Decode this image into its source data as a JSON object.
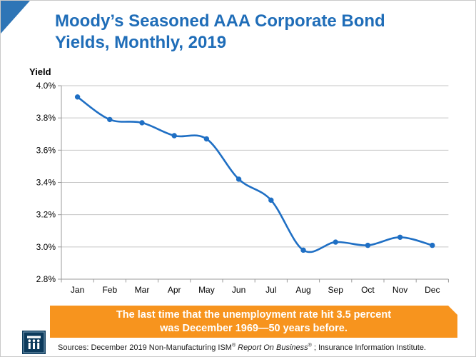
{
  "colors": {
    "title_blue": "#1F6DB8",
    "corner_blue": "#2E75B6",
    "banner_orange": "#F7941E",
    "line_blue": "#1F6FC4",
    "gridline_gray": "#C6C6C6",
    "axis_gray": "#9B9B9B",
    "logo_navy": "#0C3A5C"
  },
  "title": {
    "line1": "Moody’s Seasoned AAA Corporate Bond",
    "line2": "Yields, Monthly, 2019"
  },
  "chart_data": {
    "type": "line",
    "title": "Moody’s Seasoned AAA Corporate Bond Yields, Monthly, 2019",
    "ylabel": "Yield",
    "xlabel": "",
    "categories": [
      "Jan",
      "Feb",
      "Mar",
      "Apr",
      "May",
      "Jun",
      "Jul",
      "Aug",
      "Sep",
      "Oct",
      "Nov",
      "Dec"
    ],
    "series": [
      {
        "name": "AAA Corporate Bond Yield",
        "values": [
          3.93,
          3.79,
          3.77,
          3.69,
          3.67,
          3.42,
          3.29,
          2.98,
          3.03,
          3.01,
          3.06,
          3.01
        ]
      }
    ],
    "ylim": [
      2.8,
      4.0
    ],
    "ytick_step": 0.2,
    "ytick_suffix": "%",
    "grid": true,
    "smooth_line": true,
    "markers": true,
    "legend": "none"
  },
  "banner": {
    "line1": "The last time that the unemployment rate hit 3.5 percent",
    "line2": "was December 1969—50 years before."
  },
  "footer": {
    "sources_prefix": "Sources: December 2019 Non-Manufacturing ISM",
    "reg": "®",
    "sources_italic": " Report On Business",
    "sources_suffix": " ; Insurance Information Institute."
  },
  "logo": {
    "name": "Insurance Information Institute"
  }
}
